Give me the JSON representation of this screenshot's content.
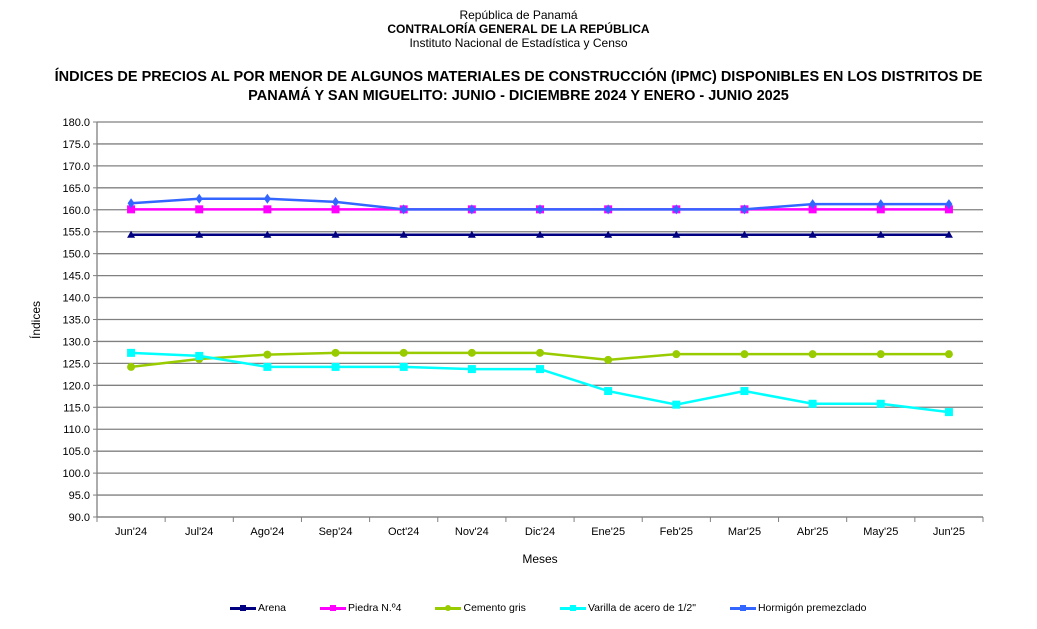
{
  "header": {
    "line1": "República de Panamá",
    "line2": "CONTRALORÍA GENERAL DE LA REPÚBLICA",
    "line3": "Instituto Nacional de Estadística y Censo"
  },
  "chart_data": {
    "type": "line",
    "title": "ÍNDICES DE PRECIOS AL POR MENOR DE ALGUNOS MATERIALES DE CONSTRUCCIÓN (IPMC) DISPONIBLES EN LOS DISTRITOS DE PANAMÁ Y SAN MIGUELITO: JUNIO - DICIEMBRE 2024 Y ENERO - JUNIO 2025",
    "xlabel": "Meses",
    "ylabel": "Índices",
    "ylim": [
      90,
      180
    ],
    "ytick_step": 5,
    "yticks": [
      "90.0",
      "95.0",
      "100.0",
      "105.0",
      "110.0",
      "115.0",
      "120.0",
      "125.0",
      "130.0",
      "135.0",
      "140.0",
      "145.0",
      "150.0",
      "155.0",
      "160.0",
      "165.0",
      "170.0",
      "175.0",
      "180.0"
    ],
    "grid": true,
    "legend_position": "bottom",
    "categories": [
      "Jun'24",
      "Jul'24",
      "Ago'24",
      "Sep'24",
      "Oct'24",
      "Nov'24",
      "Dic'24",
      "Ene'25",
      "Feb'25",
      "Mar'25",
      "Abr'25",
      "May'25",
      "Jun'25"
    ],
    "series": [
      {
        "name": "Arena",
        "color": "#000080",
        "marker": "triangle",
        "values": [
          154.3,
          154.3,
          154.3,
          154.3,
          154.3,
          154.3,
          154.3,
          154.3,
          154.3,
          154.3,
          154.3,
          154.3,
          154.3
        ]
      },
      {
        "name": "Piedra N.º4",
        "color": "#FF00FF",
        "marker": "square",
        "values": [
          160.1,
          160.1,
          160.1,
          160.1,
          160.1,
          160.1,
          160.1,
          160.1,
          160.1,
          160.1,
          160.1,
          160.1,
          160.1
        ]
      },
      {
        "name": "Cemento gris",
        "color": "#99CC00",
        "marker": "circle",
        "values": [
          124.2,
          126.0,
          127.0,
          127.4,
          127.4,
          127.4,
          127.4,
          125.8,
          127.1,
          127.1,
          127.1,
          127.1,
          127.1
        ]
      },
      {
        "name": "Varilla de acero de 1/2\"",
        "color": "#00FFFF",
        "marker": "square",
        "values": [
          127.4,
          126.7,
          124.2,
          124.2,
          124.2,
          123.7,
          123.7,
          118.7,
          115.6,
          118.7,
          115.8,
          115.8,
          113.9
        ]
      },
      {
        "name": "Hormigón premezclado",
        "color": "#3366FF",
        "marker": "diamond",
        "values": [
          161.5,
          162.5,
          162.5,
          161.8,
          160.1,
          160.1,
          160.1,
          160.1,
          160.1,
          160.1,
          161.3,
          161.3,
          161.3
        ]
      }
    ]
  }
}
